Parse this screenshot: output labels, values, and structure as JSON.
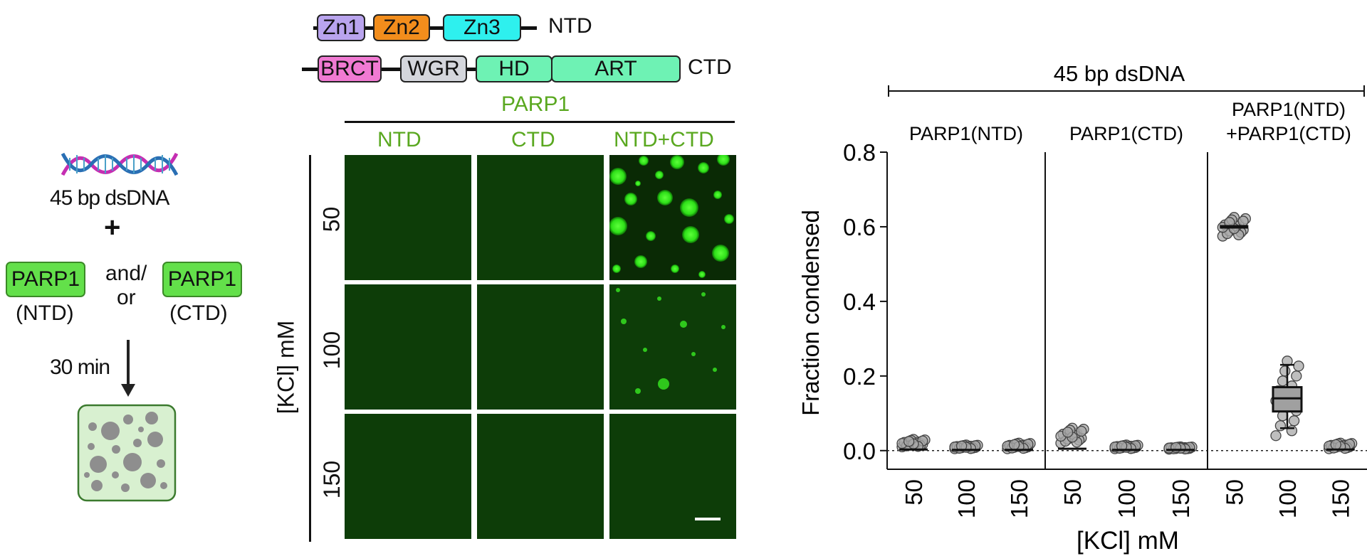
{
  "workflow": {
    "dna_label": "45 bp dsDNA",
    "plus": "+",
    "parp_left": "PARP1",
    "parp_left_sub": "(NTD)",
    "and_or_1": "and/",
    "and_or_2": "or",
    "parp_right": "PARP1",
    "parp_right_sub": "(CTD)",
    "time": "30 min"
  },
  "domains": {
    "ntd": {
      "name": "NTD",
      "blocks": [
        "Zn1",
        "Zn2",
        "Zn3"
      ]
    },
    "ctd": {
      "name": "CTD",
      "blocks": [
        "BRCT",
        "WGR",
        "HD",
        "ART"
      ]
    },
    "colors": {
      "Zn1": "#b9a4ee",
      "Zn2": "#f28d1c",
      "Zn3": "#2ef0ee",
      "BRCT": "#f07ad2",
      "WGR": "#d4d6dc",
      "HD": "#6ef2b4",
      "ART": "#6ef2b4"
    }
  },
  "micrographs": {
    "title": "PARP1",
    "columns": [
      "NTD",
      "CTD",
      "NTD+CTD"
    ],
    "rows": [
      "50",
      "100",
      "150"
    ],
    "row_axis_label": "[KCl] mM"
  },
  "chart_data": {
    "type": "box",
    "title": "45 bp dsDNA",
    "ylabel": "Fraction condensed",
    "xlabel": "[KCl] mM",
    "ylim": [
      -0.05,
      0.8
    ],
    "yticks": [
      "0.0",
      "0.2",
      "0.4",
      "0.6",
      "0.8"
    ],
    "reference_line_y": 0.0,
    "panels": [
      {
        "label": "PARP1(NTD)",
        "categories": [
          "50",
          "100",
          "150"
        ],
        "medians": [
          0.003,
          0.002,
          0.002
        ]
      },
      {
        "label": "PARP1(CTD)",
        "categories": [
          "50",
          "100",
          "150"
        ],
        "medians": [
          0.005,
          0.002,
          0.002
        ]
      },
      {
        "label_lines": [
          "PARP1(NTD)",
          "+PARP1(CTD)"
        ],
        "categories": [
          "50",
          "100",
          "150"
        ],
        "medians": [
          0.6,
          0.14,
          0.003
        ]
      }
    ]
  }
}
